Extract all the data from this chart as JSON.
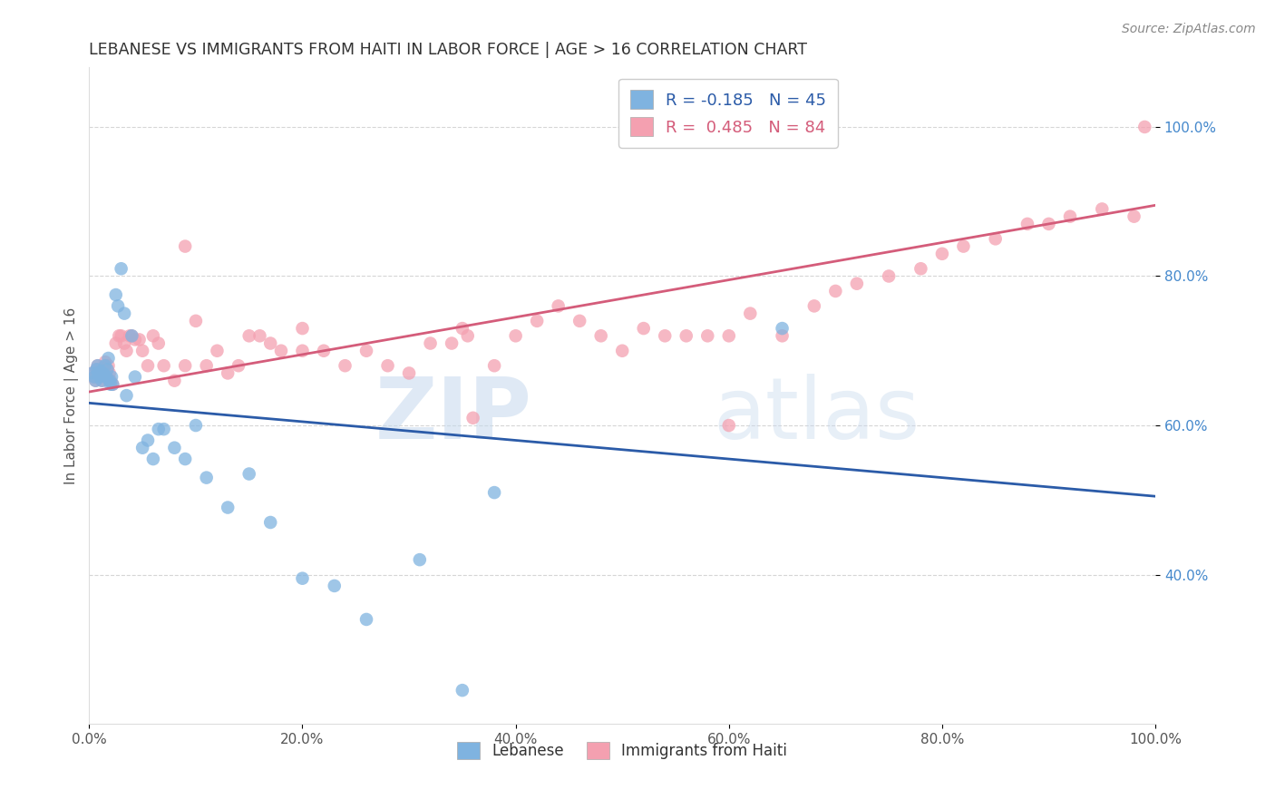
{
  "title": "LEBANESE VS IMMIGRANTS FROM HAITI IN LABOR FORCE | AGE > 16 CORRELATION CHART",
  "source": "Source: ZipAtlas.com",
  "ylabel": "In Labor Force | Age > 16",
  "xlim": [
    0.0,
    1.0
  ],
  "ylim": [
    0.2,
    1.08
  ],
  "x_ticks": [
    0.0,
    0.2,
    0.4,
    0.6,
    0.8,
    1.0
  ],
  "y_ticks_right": [
    0.4,
    0.6,
    0.8,
    1.0
  ],
  "blue_label": "Lebanese",
  "pink_label": "Immigrants from Haiti",
  "blue_R": -0.185,
  "blue_N": 45,
  "pink_R": 0.485,
  "pink_N": 84,
  "blue_color": "#7FB3E0",
  "pink_color": "#F4A0B0",
  "blue_line_color": "#2B5BA8",
  "pink_line_color": "#D45C7A",
  "watermark_zip": "ZIP",
  "watermark_atlas": "atlas",
  "background_color": "#FFFFFF",
  "grid_color": "#CCCCCC",
  "blue_line_x0": 0.0,
  "blue_line_y0": 0.63,
  "blue_line_x1": 1.0,
  "blue_line_y1": 0.505,
  "pink_line_x0": 0.0,
  "pink_line_y0": 0.645,
  "pink_line_x1": 1.0,
  "pink_line_y1": 0.895,
  "blue_x": [
    0.003,
    0.005,
    0.006,
    0.007,
    0.008,
    0.009,
    0.01,
    0.011,
    0.012,
    0.013,
    0.014,
    0.015,
    0.016,
    0.017,
    0.018,
    0.019,
    0.02,
    0.021,
    0.022,
    0.025,
    0.027,
    0.03,
    0.033,
    0.035,
    0.04,
    0.043,
    0.05,
    0.055,
    0.06,
    0.065,
    0.07,
    0.08,
    0.09,
    0.1,
    0.11,
    0.13,
    0.15,
    0.17,
    0.2,
    0.23,
    0.26,
    0.31,
    0.38,
    0.65,
    0.35
  ],
  "blue_y": [
    0.67,
    0.665,
    0.66,
    0.675,
    0.68,
    0.67,
    0.665,
    0.672,
    0.66,
    0.67,
    0.668,
    0.68,
    0.665,
    0.675,
    0.69,
    0.66,
    0.655,
    0.665,
    0.655,
    0.775,
    0.76,
    0.81,
    0.75,
    0.64,
    0.72,
    0.665,
    0.57,
    0.58,
    0.555,
    0.595,
    0.595,
    0.57,
    0.555,
    0.6,
    0.53,
    0.49,
    0.535,
    0.47,
    0.395,
    0.385,
    0.34,
    0.42,
    0.51,
    0.73,
    0.245
  ],
  "pink_x": [
    0.003,
    0.005,
    0.006,
    0.007,
    0.008,
    0.009,
    0.01,
    0.011,
    0.012,
    0.013,
    0.014,
    0.015,
    0.016,
    0.017,
    0.018,
    0.019,
    0.02,
    0.022,
    0.025,
    0.028,
    0.03,
    0.033,
    0.035,
    0.038,
    0.04,
    0.043,
    0.047,
    0.05,
    0.055,
    0.06,
    0.065,
    0.07,
    0.08,
    0.09,
    0.1,
    0.11,
    0.12,
    0.13,
    0.14,
    0.15,
    0.16,
    0.17,
    0.18,
    0.2,
    0.22,
    0.24,
    0.26,
    0.28,
    0.3,
    0.32,
    0.34,
    0.355,
    0.36,
    0.38,
    0.4,
    0.42,
    0.44,
    0.46,
    0.48,
    0.5,
    0.52,
    0.54,
    0.56,
    0.58,
    0.6,
    0.62,
    0.65,
    0.68,
    0.7,
    0.72,
    0.75,
    0.78,
    0.8,
    0.82,
    0.85,
    0.88,
    0.9,
    0.92,
    0.95,
    0.98,
    0.35,
    0.09,
    0.2,
    0.99,
    0.6
  ],
  "pink_y": [
    0.67,
    0.665,
    0.66,
    0.675,
    0.68,
    0.67,
    0.665,
    0.672,
    0.66,
    0.67,
    0.668,
    0.685,
    0.665,
    0.675,
    0.68,
    0.67,
    0.66,
    0.655,
    0.71,
    0.72,
    0.72,
    0.71,
    0.7,
    0.72,
    0.72,
    0.715,
    0.715,
    0.7,
    0.68,
    0.72,
    0.71,
    0.68,
    0.66,
    0.68,
    0.74,
    0.68,
    0.7,
    0.67,
    0.68,
    0.72,
    0.72,
    0.71,
    0.7,
    0.7,
    0.7,
    0.68,
    0.7,
    0.68,
    0.67,
    0.71,
    0.71,
    0.72,
    0.61,
    0.68,
    0.72,
    0.74,
    0.76,
    0.74,
    0.72,
    0.7,
    0.73,
    0.72,
    0.72,
    0.72,
    0.72,
    0.75,
    0.72,
    0.76,
    0.78,
    0.79,
    0.8,
    0.81,
    0.83,
    0.84,
    0.85,
    0.87,
    0.87,
    0.88,
    0.89,
    0.88,
    0.73,
    0.84,
    0.73,
    1.0,
    0.6
  ]
}
